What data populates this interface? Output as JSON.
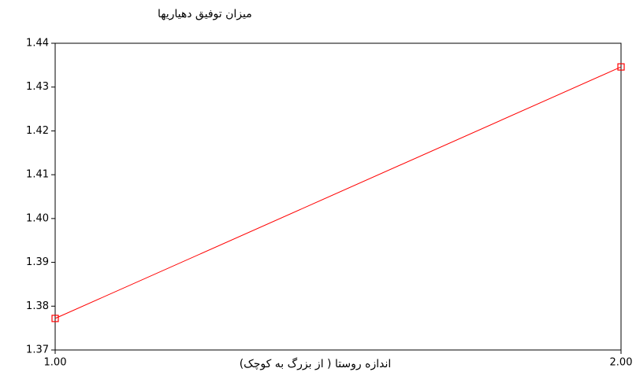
{
  "chart_data": {
    "type": "line",
    "y_label": "میزان توفیق دهیاریها",
    "x_label": "اندازه روستا ( از بزرگ به کوچک)",
    "x": [
      1,
      2
    ],
    "values": [
      1.3772,
      1.4346
    ],
    "color": "#ff0000",
    "xlim": [
      1,
      2
    ],
    "xticks": [
      {
        "value": 1,
        "label": "1.00"
      },
      {
        "value": 2,
        "label": "2.00"
      }
    ],
    "ylim": [
      1.37,
      1.44
    ],
    "yticks": [
      {
        "value": 1.37,
        "label": "1.37"
      },
      {
        "value": 1.38,
        "label": "1.38"
      },
      {
        "value": 1.39,
        "label": "1.39"
      },
      {
        "value": 1.4,
        "label": "1.40"
      },
      {
        "value": 1.41,
        "label": "1.41"
      },
      {
        "value": 1.42,
        "label": "1.42"
      },
      {
        "value": 1.43,
        "label": "1.43"
      },
      {
        "value": 1.44,
        "label": "1.44"
      }
    ]
  }
}
